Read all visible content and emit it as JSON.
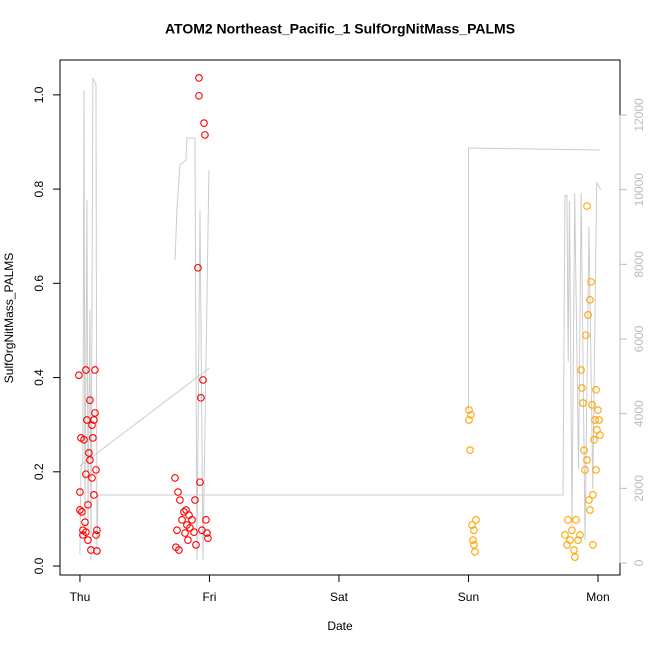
{
  "chart_data": {
    "type": "scatter",
    "title": "ATOM2 Northeast_Pacific_1 SulfOrgNitMass_PALMS",
    "xlabel": "Date",
    "ylabel": "SulfOrgNitMass_PALMS",
    "xlim": [
      -0.154,
      4.17
    ],
    "xticks": [
      {
        "value": 0,
        "label": "Thu"
      },
      {
        "value": 1,
        "label": "Fri"
      },
      {
        "value": 2,
        "label": "Sat"
      },
      {
        "value": 3,
        "label": "Sun"
      },
      {
        "value": 4,
        "label": "Mon"
      }
    ],
    "ylim": [
      -0.019,
      1.074
    ],
    "yticks": [
      {
        "value": 0,
        "label": "0.0"
      },
      0.2,
      0.4,
      0.6,
      0.8,
      {
        "value": 1,
        "label": "1.0"
      }
    ],
    "y2lim": [
      -321,
      13473
    ],
    "y2ticks": [
      0,
      2000,
      4000,
      6000,
      8000,
      10000,
      12000
    ],
    "series": [
      {
        "type": "line",
        "axis": "y2",
        "color": "#cccccc",
        "x": [
          0.0,
          0.0077,
          0.023,
          0.031,
          0.039,
          0.054,
          0.062,
          0.077,
          0.085,
          0.1,
          0.124,
          0.131,
          0.139,
          3.73,
          3.745,
          3.76,
          3.77,
          3.78,
          3.8,
          3.82,
          3.85,
          3.87,
          3.9,
          3.93,
          3.96,
          3.99,
          4.02,
          null,
          0.0,
          1.0,
          null,
          0.734,
          0.749,
          0.772,
          0.819,
          0.826,
          0.888,
          0.903,
          0.927,
          0.95,
          0.996,
          null,
          3.0,
          3.0,
          4.015
        ],
        "values": [
          214,
          2491,
          2759,
          12670,
          1152,
          9723,
          884,
          6777,
          80,
          12991,
          12804,
          348,
          1821,
          1821,
          9850,
          9850,
          5400,
          9700,
          1000,
          9900,
          2500,
          9900,
          600,
          9000,
          2000,
          10200,
          10000,
          null,
          2600,
          5223,
          null,
          8116,
          9456,
          10661,
          10795,
          11384,
          11384,
          80,
          9456,
          80,
          10527,
          null,
          4098,
          11116,
          11063
        ]
      },
      {
        "type": "scatter",
        "color": "#ff0000",
        "x": [
          -0.008,
          0.0,
          0.008,
          0.015,
          0.023,
          0.031,
          0.039,
          0.046,
          0.046,
          0.054,
          0.062,
          0.069,
          0.077,
          0.085,
          0.093,
          0.1,
          0.108,
          0.116,
          0.116,
          0.124,
          0.131,
          0.131,
          0.046,
          0.062,
          0.0,
          0.023,
          0.108,
          0.093,
          0.077,
          0.124,
          0.734,
          0.741,
          0.749,
          0.764,
          0.772,
          0.788,
          0.803,
          0.811,
          0.819,
          0.826,
          0.834,
          0.849,
          0.865,
          0.88,
          0.896,
          0.911,
          0.919,
          0.919,
          0.927,
          0.934,
          0.942,
          0.95,
          0.958,
          0.965,
          0.973,
          0.981,
          0.988,
          0.757,
          0.842,
          0.888
        ],
        "values": [
          0.405,
          0.157,
          0.272,
          0.115,
          0.066,
          0.268,
          0.093,
          0.195,
          0.416,
          0.31,
          0.055,
          0.24,
          0.352,
          0.034,
          0.187,
          0.272,
          0.31,
          0.325,
          0.416,
          0.204,
          0.076,
          0.032,
          0.072,
          0.13,
          0.119,
          0.076,
          0.151,
          0.299,
          0.225,
          0.066,
          0.187,
          0.04,
          0.076,
          0.034,
          0.14,
          0.098,
          0.115,
          0.07,
          0.119,
          0.087,
          0.055,
          0.081,
          0.098,
          0.072,
          0.045,
          0.633,
          1.036,
          0.998,
          0.178,
          0.357,
          0.076,
          0.395,
          0.94,
          0.915,
          0.098,
          0.07,
          0.059,
          0.157,
          0.108,
          0.14
        ]
      },
      {
        "type": "scatter",
        "color": "#ffa500",
        "x": [
          3.004,
          3.004,
          3.012,
          3.027,
          3.035,
          3.042,
          3.05,
          3.058,
          3.019,
          3.042,
          3.745,
          3.761,
          3.768,
          3.784,
          3.799,
          3.815,
          3.822,
          3.83,
          3.846,
          3.861,
          3.869,
          3.876,
          3.884,
          3.892,
          3.9,
          3.907,
          3.915,
          3.923,
          3.93,
          3.938,
          3.946,
          3.954,
          3.961,
          3.969,
          3.977,
          3.985,
          3.992,
          4.0,
          4.008,
          4.015,
          3.915,
          3.961,
          3.938,
          3.985
        ],
        "values": [
          0.331,
          0.31,
          0.246,
          0.087,
          0.055,
          0.076,
          0.03,
          0.098,
          0.321,
          0.045,
          0.066,
          0.045,
          0.098,
          0.055,
          0.076,
          0.034,
          0.019,
          0.098,
          0.055,
          0.066,
          0.416,
          0.378,
          0.346,
          0.246,
          0.204,
          0.49,
          0.764,
          0.533,
          0.14,
          0.119,
          0.603,
          0.342,
          0.151,
          0.268,
          0.31,
          0.374,
          0.289,
          0.331,
          0.31,
          0.278,
          0.225,
          0.045,
          0.565,
          0.204
        ]
      }
    ]
  }
}
